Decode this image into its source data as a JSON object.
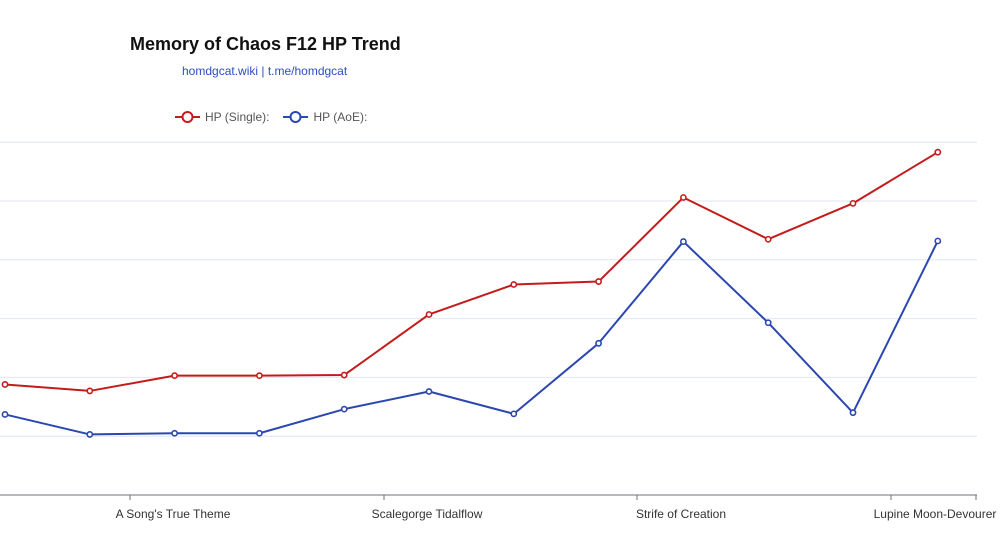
{
  "chart_data": {
    "type": "line",
    "title": "Memory of Chaos F12 HP Trend",
    "subtitle": "homdgcat.wiki | t.me/homdgcat",
    "xlabel": "",
    "ylabel": "",
    "x_tick_labels": [
      "A Song's True Theme",
      "Scalegorge Tidalflow",
      "Strife of Creation",
      "Lupine Moon-Devourer"
    ],
    "ylim": [
      0,
      6
    ],
    "grid": true,
    "legend_position": "top",
    "series": [
      {
        "name": "HP (Single):",
        "color": "#c41b1b",
        "values": [
          1.88,
          1.77,
          2.03,
          2.03,
          2.04,
          3.07,
          3.58,
          3.63,
          5.06,
          4.35,
          4.96,
          5.83
        ]
      },
      {
        "name": "HP (AoE):",
        "color": "#2b47b0",
        "values": [
          1.37,
          1.03,
          1.05,
          1.05,
          1.46,
          1.76,
          1.38,
          2.58,
          4.31,
          2.93,
          1.4,
          4.32
        ]
      }
    ]
  }
}
